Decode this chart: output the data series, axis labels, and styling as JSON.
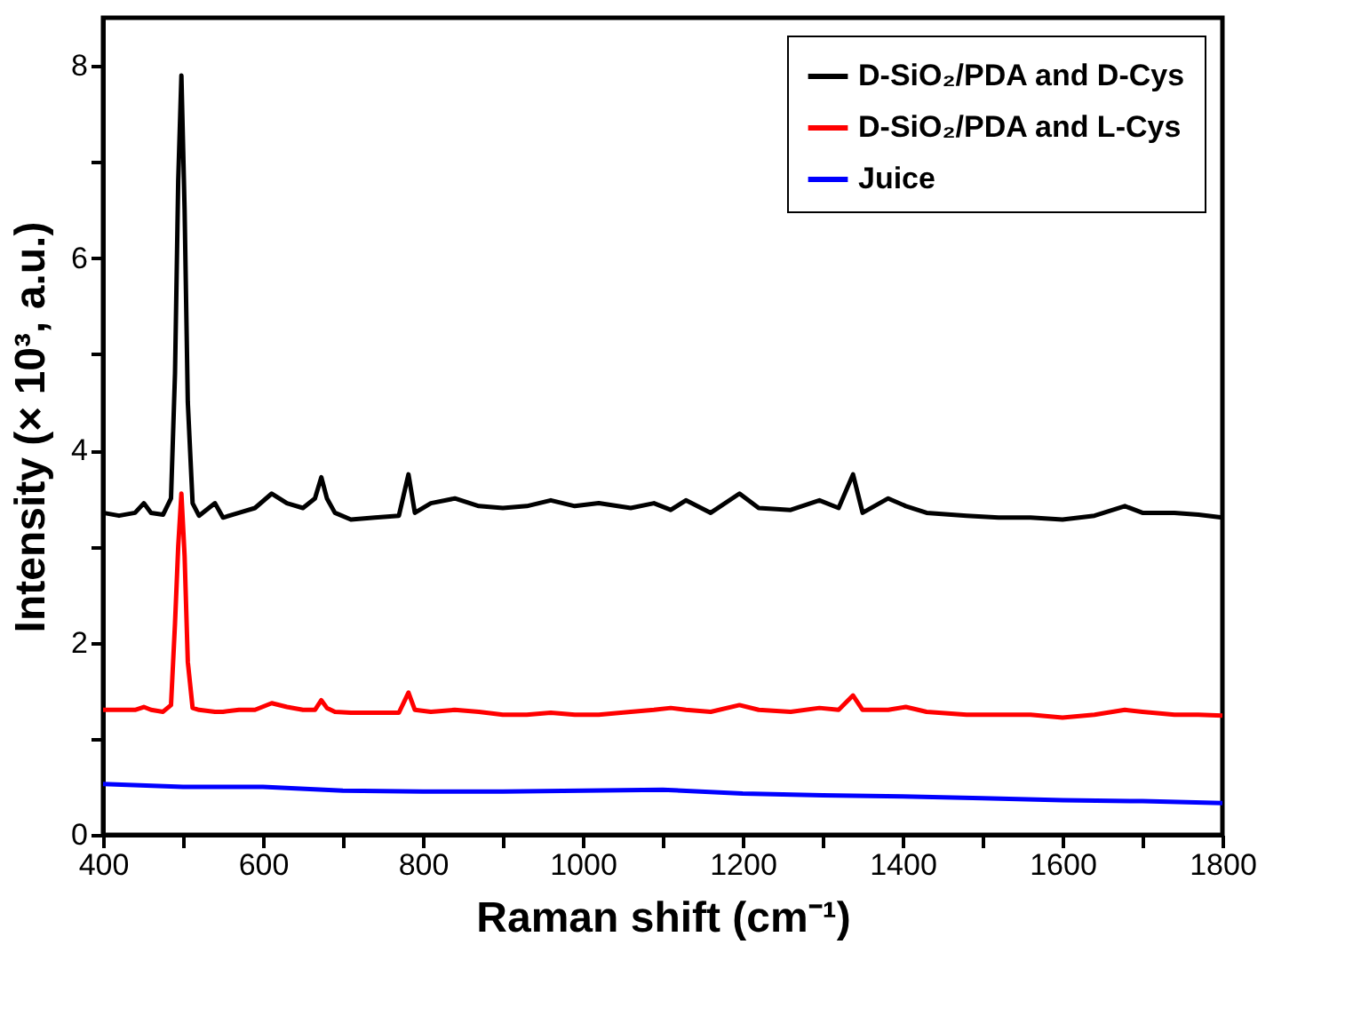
{
  "chart_data": {
    "type": "line",
    "xlabel": "Raman shift (cm⁻¹)",
    "ylabel": "Intensity (× 10³, a.u.)",
    "xlim": [
      400,
      1800
    ],
    "xticks": [
      400,
      {
        "value": 500,
        "label": null
      },
      600,
      {
        "value": 700,
        "label": null
      },
      800,
      {
        "value": 900,
        "label": null
      },
      1000,
      {
        "value": 1100,
        "label": null
      },
      1200,
      {
        "value": 1300,
        "label": null
      },
      1400,
      {
        "value": 1500,
        "label": null
      },
      1600,
      {
        "value": 1700,
        "label": null
      },
      1800
    ],
    "ylim": [
      0,
      8.5
    ],
    "yticks": [
      0,
      {
        "value": 1,
        "label": null
      },
      2,
      {
        "value": 3,
        "label": null
      },
      4,
      {
        "value": 5,
        "label": null
      },
      6,
      {
        "value": 7,
        "label": null
      },
      8
    ],
    "grid": false,
    "legend": "top right",
    "marker": "none",
    "line_style": "solid",
    "x": [
      400,
      420,
      440,
      451,
      460,
      475,
      485,
      490,
      494,
      498,
      502,
      506,
      512,
      520,
      540,
      550,
      570,
      590,
      611,
      630,
      650,
      665,
      673,
      680,
      690,
      710,
      740,
      770,
      782,
      790,
      810,
      840,
      870,
      900,
      930,
      960,
      990,
      1020,
      1060,
      1089,
      1110,
      1129,
      1160,
      1196,
      1220,
      1260,
      1296,
      1320,
      1338,
      1350,
      1382,
      1404,
      1430,
      1480,
      1520,
      1560,
      1600,
      1640,
      1678,
      1700,
      1740,
      1770,
      1800
    ],
    "series": [
      {
        "name": "D-SiO₂/PDA and D-Cys",
        "color": "#000000",
        "values": [
          3.35,
          3.32,
          3.35,
          3.45,
          3.35,
          3.33,
          3.5,
          4.8,
          6.8,
          7.9,
          6.5,
          4.5,
          3.45,
          3.32,
          3.45,
          3.3,
          3.35,
          3.4,
          3.55,
          3.45,
          3.4,
          3.5,
          3.72,
          3.5,
          3.35,
          3.28,
          3.3,
          3.32,
          3.75,
          3.35,
          3.45,
          3.5,
          3.42,
          3.4,
          3.42,
          3.48,
          3.42,
          3.45,
          3.4,
          3.45,
          3.38,
          3.48,
          3.35,
          3.55,
          3.4,
          3.38,
          3.48,
          3.4,
          3.75,
          3.35,
          3.5,
          3.42,
          3.35,
          3.32,
          3.3,
          3.3,
          3.28,
          3.32,
          3.42,
          3.35,
          3.35,
          3.33,
          3.3
        ]
      },
      {
        "name": "D-SiO₂/PDA and L-Cys",
        "color": "#ff0000",
        "values": [
          1.3,
          1.3,
          1.3,
          1.33,
          1.3,
          1.28,
          1.35,
          2.2,
          3.0,
          3.55,
          2.9,
          1.8,
          1.32,
          1.3,
          1.28,
          1.28,
          1.3,
          1.3,
          1.37,
          1.33,
          1.3,
          1.3,
          1.4,
          1.32,
          1.28,
          1.27,
          1.27,
          1.27,
          1.48,
          1.3,
          1.28,
          1.3,
          1.28,
          1.25,
          1.25,
          1.27,
          1.25,
          1.25,
          1.28,
          1.3,
          1.32,
          1.3,
          1.28,
          1.35,
          1.3,
          1.28,
          1.32,
          1.3,
          1.45,
          1.3,
          1.3,
          1.33,
          1.28,
          1.25,
          1.25,
          1.25,
          1.22,
          1.25,
          1.3,
          1.28,
          1.25,
          1.25,
          1.24
        ]
      },
      {
        "name": "Juice",
        "color": "#0000ff",
        "x": [
          400,
          500,
          600,
          700,
          800,
          900,
          1000,
          1100,
          1200,
          1300,
          1400,
          1500,
          1600,
          1700,
          1800
        ],
        "values": [
          0.53,
          0.5,
          0.5,
          0.46,
          0.45,
          0.45,
          0.46,
          0.47,
          0.43,
          0.41,
          0.4,
          0.38,
          0.36,
          0.35,
          0.33
        ]
      }
    ]
  }
}
